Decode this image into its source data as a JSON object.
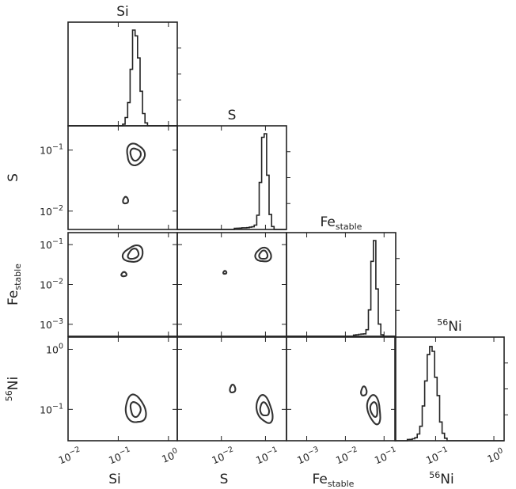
{
  "chart_data": {
    "type": "corner",
    "parameters": [
      {
        "key": "si",
        "name": "Si",
        "sub": "",
        "sup": ""
      },
      {
        "key": "s",
        "name": "S",
        "sub": "",
        "sup": ""
      },
      {
        "key": "fe",
        "name": "Fe",
        "sub": "stable",
        "sup": ""
      },
      {
        "key": "ni",
        "name": "Ni",
        "sub": "",
        "sup": "56"
      }
    ],
    "scale": "log",
    "x_ranges": [
      [
        0.01,
        1.5
      ],
      [
        0.001,
        0.3
      ],
      [
        0.0003,
        0.2
      ],
      [
        0.02,
        1.5
      ]
    ],
    "y_ranges": {
      "s": [
        0.005,
        0.25
      ],
      "fe": [
        0.0005,
        0.2
      ],
      "ni": [
        0.03,
        1.6
      ]
    },
    "x_ticks": [
      [
        {
          "v": 0.01,
          "m": "10",
          "e": "−2"
        },
        {
          "v": 0.1,
          "m": "10",
          "e": "−1"
        },
        {
          "v": 1,
          "m": "10",
          "e": "0"
        }
      ],
      [
        {
          "v": 0.01,
          "m": "10",
          "e": "−2"
        },
        {
          "v": 0.1,
          "m": "10",
          "e": "−1"
        }
      ],
      [
        {
          "v": 0.001,
          "m": "10",
          "e": "−3"
        },
        {
          "v": 0.01,
          "m": "10",
          "e": "−2"
        },
        {
          "v": 0.1,
          "m": "10",
          "e": "−1"
        }
      ],
      [
        {
          "v": 0.1,
          "m": "10",
          "e": "−1"
        },
        {
          "v": 1,
          "m": "10",
          "e": "0"
        }
      ]
    ],
    "y_ticks": {
      "s": [
        {
          "v": 0.1,
          "m": "10",
          "e": "−1"
        },
        {
          "v": 0.01,
          "m": "10",
          "e": "−2"
        }
      ],
      "fe": [
        {
          "v": 0.1,
          "m": "10",
          "e": "−1"
        },
        {
          "v": 0.01,
          "m": "10",
          "e": "−2"
        },
        {
          "v": 0.001,
          "m": "10",
          "e": "−3"
        }
      ],
      "ni": [
        {
          "v": 1,
          "m": "10",
          "e": "0"
        },
        {
          "v": 0.1,
          "m": "10",
          "e": "−1"
        }
      ]
    },
    "histograms": [
      {
        "param": "si",
        "peak": 0.22,
        "width_dex": 0.08,
        "tail_dex": 0
      },
      {
        "param": "s",
        "peak": 0.095,
        "width_dex": 0.07,
        "tail_dex": 0.55
      },
      {
        "param": "fe",
        "peak": 0.055,
        "width_dex": 0.07,
        "tail_dex": 0.5
      },
      {
        "param": "ni",
        "peak": 0.085,
        "width_dex": 0.09,
        "tail_dex": 0.35
      }
    ],
    "contour_panels": [
      {
        "x": "si",
        "y": "s",
        "peak": [
          0.22,
          0.085
        ],
        "inner": {
          "wx": 0.1,
          "wy": 0.1,
          "tilt": 0
        },
        "outer": {
          "wx": 0.18,
          "wy": 0.17,
          "tilt": 0
        },
        "islands": [
          {
            "x": 0.14,
            "y": 0.015,
            "r": 0.05
          }
        ]
      },
      {
        "x": "si",
        "y": "fe",
        "peak": [
          0.2,
          0.058
        ],
        "inner": {
          "wx": 0.1,
          "wy": 0.13,
          "tilt": -0.55
        },
        "outer": {
          "wx": 0.18,
          "wy": 0.22,
          "tilt": -0.55
        },
        "islands": [
          {
            "x": 0.13,
            "y": 0.018,
            "r": 0.05
          }
        ]
      },
      {
        "x": "s",
        "y": "fe",
        "peak": [
          0.09,
          0.055
        ],
        "inner": {
          "wx": 0.09,
          "wy": 0.11,
          "tilt": 0
        },
        "outer": {
          "wx": 0.17,
          "wy": 0.18,
          "tilt": 0
        },
        "islands": [
          {
            "x": 0.012,
            "y": 0.02,
            "r": 0.035
          }
        ]
      },
      {
        "x": "si",
        "y": "ni",
        "peak": [
          0.22,
          0.1
        ],
        "inner": {
          "wx": 0.1,
          "wy": 0.12,
          "tilt": 0.4
        },
        "outer": {
          "wx": 0.18,
          "wy": 0.25,
          "tilt": 0.4
        },
        "islands": []
      },
      {
        "x": "s",
        "y": "ni",
        "peak": [
          0.095,
          0.1
        ],
        "inner": {
          "wx": 0.09,
          "wy": 0.12,
          "tilt": 0.4
        },
        "outer": {
          "wx": 0.16,
          "wy": 0.24,
          "tilt": 0.4
        },
        "islands": [
          {
            "x": 0.018,
            "y": 0.22,
            "r": 0.06
          }
        ]
      },
      {
        "x": "fe",
        "y": "ni",
        "peak": [
          0.055,
          0.1
        ],
        "inner": {
          "wx": 0.09,
          "wy": 0.12,
          "tilt": 0.4
        },
        "outer": {
          "wx": 0.16,
          "wy": 0.24,
          "tilt": 0.4
        },
        "islands": [
          {
            "x": 0.03,
            "y": 0.2,
            "r": 0.07
          }
        ]
      }
    ]
  }
}
